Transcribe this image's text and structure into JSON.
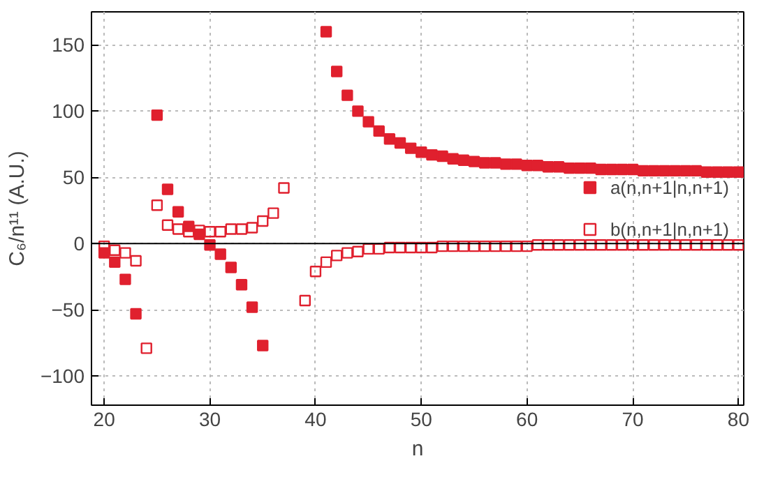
{
  "chart_data": {
    "type": "scatter",
    "xlabel": "n",
    "ylabel": "C₆/n¹¹ (A.U.)",
    "x": [
      20,
      21,
      22,
      23,
      24,
      25,
      26,
      27,
      28,
      29,
      30,
      31,
      32,
      33,
      34,
      35,
      36,
      37,
      38,
      39,
      40,
      41,
      42,
      43,
      44,
      45,
      46,
      47,
      48,
      49,
      50,
      51,
      52,
      53,
      54,
      55,
      56,
      57,
      58,
      59,
      60,
      61,
      62,
      63,
      64,
      65,
      66,
      67,
      68,
      69,
      70,
      71,
      72,
      73,
      74,
      75,
      76,
      77,
      78,
      79,
      80
    ],
    "series": [
      {
        "name": "a(n,n+1|n,n+1)",
        "color": "#e0202e",
        "values": [
          -7,
          -14,
          -27,
          -53,
          null,
          97,
          41,
          24,
          13,
          7,
          -1,
          -8,
          -18,
          -31,
          -48,
          -77,
          null,
          null,
          null,
          null,
          null,
          160,
          130,
          112,
          100,
          92,
          85,
          79,
          76,
          72,
          69,
          67,
          66,
          64,
          63,
          62,
          61,
          61,
          60,
          60,
          59,
          59,
          58,
          58,
          57,
          57,
          57,
          56,
          56,
          56,
          56,
          55,
          55,
          55,
          55,
          55,
          55,
          54,
          54,
          54,
          54
        ]
      },
      {
        "name": "b(n,n+1|n,n+1)",
        "color": "#e0202e",
        "values": [
          -2,
          -5,
          -7,
          -13,
          -79,
          29,
          14,
          11,
          9,
          10,
          9,
          9,
          11,
          11,
          12,
          17,
          23,
          42,
          null,
          -43,
          -21,
          -14,
          -9,
          -7,
          -6,
          -4,
          -4,
          -3,
          -3,
          -3,
          -3,
          -3,
          -2,
          -2,
          -2,
          -2,
          -2,
          -2,
          -2,
          -2,
          -2,
          -1,
          -1,
          -1,
          -1,
          -1,
          -1,
          -1,
          -1,
          -1,
          -1,
          -1,
          -1,
          -1,
          -1,
          -1,
          -1,
          -1,
          -1,
          -1,
          -1
        ]
      }
    ],
    "xlim": [
      18.8,
      80.5
    ],
    "ylim": [
      -122,
      175
    ],
    "xticks": [
      20,
      30,
      40,
      50,
      60,
      70,
      80
    ],
    "yticks": [
      -100,
      -50,
      0,
      50,
      100,
      150
    ],
    "grid": true,
    "legend": "right",
    "marker": "square",
    "ref_lines": [
      {
        "axis": "y",
        "value": 0,
        "color": "#000000"
      }
    ]
  }
}
